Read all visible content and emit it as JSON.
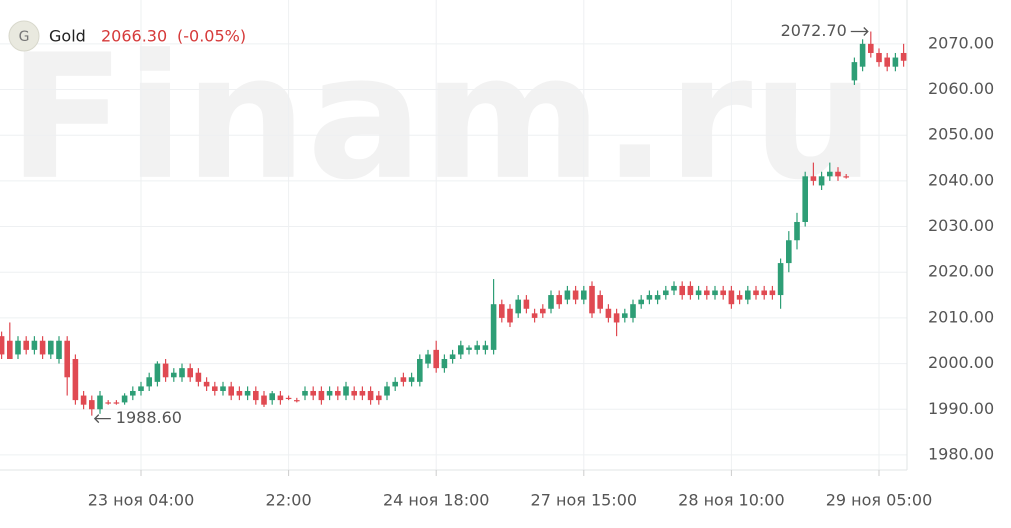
{
  "header": {
    "icon": "G",
    "symbol": "Gold",
    "price": "2066.30",
    "change": "(-0.05%)"
  },
  "chart_data": {
    "type": "candlestick",
    "watermark": "Finam.ru",
    "categories": [
      null,
      null,
      null,
      null,
      null,
      null,
      null,
      null,
      null,
      null,
      null,
      null,
      null,
      null,
      null,
      null,
      null,
      "23 ноя 04:00",
      null,
      null,
      null,
      null,
      null,
      null,
      null,
      null,
      null,
      null,
      null,
      null,
      null,
      null,
      null,
      null,
      null,
      "22:00",
      null,
      null,
      null,
      null,
      null,
      null,
      null,
      null,
      null,
      null,
      null,
      null,
      null,
      null,
      null,
      null,
      null,
      "24 ноя 18:00",
      null,
      null,
      null,
      null,
      null,
      null,
      null,
      null,
      null,
      null,
      null,
      null,
      null,
      null,
      null,
      null,
      null,
      "27 ноя 15:00",
      null,
      null,
      null,
      null,
      null,
      null,
      null,
      null,
      null,
      null,
      null,
      null,
      null,
      null,
      null,
      null,
      null,
      "28 ноя 10:00",
      null,
      null,
      null,
      null,
      null,
      null,
      null,
      null,
      null,
      null,
      null,
      null,
      null,
      null,
      null,
      null,
      null,
      "29 ноя 05:00",
      null,
      null,
      null
    ],
    "open": [
      2006,
      2005,
      2002,
      2005,
      2003,
      2005,
      2002,
      2001,
      2005,
      2001,
      1993,
      1992,
      1990,
      1991.5,
      1991.5,
      1991.5,
      1993,
      1994,
      1995,
      1996,
      2000,
      1997,
      1997,
      1999,
      1998,
      1996,
      1995,
      1994,
      1995,
      1994,
      1993,
      1994,
      1993,
      1992,
      1993,
      1992.5,
      1992,
      1993,
      1994,
      1994,
      1993,
      1994,
      1993,
      1994,
      1994,
      1994,
      1993,
      1993,
      1995,
      1997,
      1996,
      1996,
      2000,
      2003,
      1999,
      2001,
      2002,
      2003,
      2003,
      2003,
      2003,
      2013,
      2012,
      2011,
      2014,
      2011,
      2012,
      2012,
      2015,
      2014,
      2016,
      2014,
      2017,
      2015,
      2012,
      2011,
      2010,
      2010,
      2013,
      2014,
      2014,
      2015,
      2016,
      2017,
      2017,
      2015,
      2016,
      2015,
      2016,
      2016,
      2015,
      2014,
      2016,
      2016,
      2016,
      2015,
      2022,
      2027,
      2031,
      2041,
      2039,
      2041,
      2042,
      2041,
      2062,
      2065,
      2070,
      2068,
      2067,
      2065,
      2068
    ],
    "high": [
      2007,
      2009,
      2006,
      2006,
      2006,
      2006,
      2005,
      2006,
      2006,
      2002,
      1994,
      1993,
      1994,
      1992,
      1992,
      1993.5,
      1995,
      1996,
      1998,
      2000.5,
      2001,
      1999,
      2000,
      2000,
      1999,
      1997,
      1996,
      1996,
      1996,
      1995,
      1995,
      1995,
      1994,
      1994,
      1994,
      1993,
      1992.5,
      1995,
      1995,
      1995,
      1995,
      1995,
      1996,
      1995,
      1995,
      1995,
      1994,
      1996,
      1997,
      1998,
      1998,
      2002,
      2003,
      2005,
      2002,
      2003,
      2005,
      2004,
      2005,
      2005,
      2018.5,
      2014,
      2013,
      2015,
      2015,
      2012,
      2013,
      2016,
      2016,
      2017,
      2017,
      2017,
      2018,
      2016,
      2013,
      2012,
      2012,
      2014,
      2015,
      2016,
      2016,
      2017,
      2018,
      2018,
      2018,
      2017,
      2017,
      2017,
      2017,
      2017,
      2016,
      2017,
      2017,
      2017,
      2017,
      2023,
      2029,
      2033,
      2042,
      2044,
      2042,
      2044,
      2043,
      2041.5,
      2067,
      2071,
      2072.7,
      2069,
      2068,
      2068,
      2070
    ],
    "low": [
      2001,
      2001,
      2001,
      2002,
      2002,
      2001,
      2001,
      2000,
      1993,
      1991,
      1990,
      1988.6,
      1989,
      1991,
      1991,
      1991,
      1992,
      1993,
      1994,
      1995,
      1996,
      1996,
      1996,
      1996,
      1995,
      1994,
      1993,
      1993,
      1992,
      1992,
      1992,
      1991,
      1990.5,
      1991,
      1991,
      1992,
      1991.5,
      1992,
      1992,
      1991,
      1992,
      1992,
      1992,
      1992,
      1992,
      1991,
      1991,
      1992,
      1994,
      1995,
      1995,
      1995,
      1999,
      1998,
      1998,
      2000,
      2001,
      2002,
      2002,
      2002,
      2002,
      2009,
      2008,
      2010,
      2011,
      2009,
      2010,
      2011,
      2012,
      2013,
      2013,
      2013,
      2010,
      2011,
      2009,
      2006,
      2009,
      2009,
      2012,
      2013,
      2013,
      2014,
      2015,
      2014,
      2014,
      2014,
      2014,
      2014,
      2014,
      2012,
      2013,
      2013,
      2014,
      2014,
      2014,
      2012,
      2020,
      2025,
      2030,
      2039,
      2038,
      2040,
      2040,
      2040.5,
      2061,
      2064,
      2067,
      2065,
      2064,
      2064,
      2065
    ],
    "close": [
      2002,
      2001,
      2005,
      2003,
      2005,
      2002,
      2005,
      2005,
      1997,
      1992,
      1991,
      1990,
      1993,
      1991.5,
      1991.5,
      1993,
      1994,
      1995,
      1997,
      2000,
      1997,
      1998,
      1999,
      1997,
      1996,
      1995,
      1994,
      1995,
      1993,
      1993,
      1994,
      1992,
      1991,
      1993.5,
      1992,
      1992.5,
      1992,
      1994,
      1993,
      1992,
      1994,
      1993,
      1995,
      1993,
      1993,
      1992,
      1992,
      1995,
      1996,
      1996,
      1997,
      2001,
      2002,
      1999,
      2001,
      2002,
      2004,
      2003.5,
      2004,
      2004,
      2013,
      2010,
      2009,
      2014,
      2012,
      2010,
      2011,
      2015,
      2013,
      2016,
      2014,
      2016,
      2011,
      2012,
      2010,
      2009,
      2011,
      2013,
      2014,
      2015,
      2015,
      2016,
      2017,
      2015,
      2015,
      2016,
      2015,
      2016,
      2015,
      2013,
      2014,
      2016,
      2015,
      2015,
      2015,
      2022,
      2027,
      2031,
      2041,
      2040,
      2041,
      2042,
      2041,
      2041,
      2066,
      2070,
      2068,
      2066,
      2065,
      2067,
      2066.3
    ],
    "up_color": "#2e9e76",
    "down_color": "#e04a52",
    "ylim": [
      1976.7,
      2079.6
    ],
    "yticks": [
      {
        "value": 1980,
        "label": "1980.00"
      },
      {
        "value": 1990,
        "label": "1990.00"
      },
      {
        "value": 2000,
        "label": "2000.00"
      },
      {
        "value": 2010,
        "label": "2010.00"
      },
      {
        "value": 2020,
        "label": "2020.00"
      },
      {
        "value": 2030,
        "label": "2030.00"
      },
      {
        "value": 2040,
        "label": "2040.00"
      },
      {
        "value": 2050,
        "label": "2050.00"
      },
      {
        "value": 2060,
        "label": "2060.00"
      },
      {
        "value": 2070,
        "label": "2070.00"
      }
    ],
    "max_label": "2072.70",
    "min_label": "1988.60",
    "grid": true
  }
}
